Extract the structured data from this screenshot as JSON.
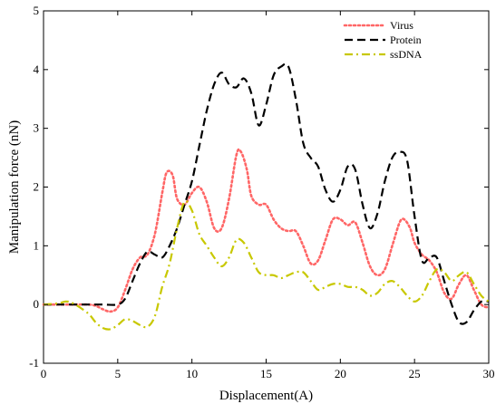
{
  "chart_data": {
    "type": "line",
    "title": "",
    "xlabel": "Displacement(A)",
    "ylabel": "Manipulation force (nN)",
    "xlim": [
      0,
      30
    ],
    "ylim": [
      -1,
      5
    ],
    "xticks": [
      0,
      5,
      10,
      15,
      20,
      25,
      30
    ],
    "yticks": [
      -1,
      0,
      1,
      2,
      3,
      4,
      5
    ],
    "grid": false,
    "legend_position": "top-right",
    "series": [
      {
        "name": "Virus",
        "color": "#ff6666",
        "style": "dotted",
        "x": [
          0,
          1,
          2,
          3,
          3.5,
          4,
          4.5,
          5,
          5.5,
          6,
          6.5,
          7,
          7.5,
          8,
          8.3,
          8.7,
          9,
          9.5,
          10,
          10.5,
          11,
          11.5,
          12,
          12.5,
          13,
          13.3,
          13.7,
          14,
          14.5,
          15,
          15.5,
          16,
          16.5,
          17,
          17.5,
          18,
          18.5,
          19,
          19.5,
          20,
          20.5,
          21,
          21.5,
          22,
          22.5,
          23,
          23.5,
          24,
          24.3,
          24.7,
          25,
          25.5,
          26,
          26.5,
          27,
          27.5,
          28,
          28.5,
          29,
          29.5,
          30
        ],
        "y": [
          0,
          0,
          0,
          0,
          -0.02,
          -0.08,
          -0.12,
          -0.05,
          0.25,
          0.6,
          0.8,
          0.85,
          1.2,
          1.9,
          2.25,
          2.2,
          1.8,
          1.7,
          1.9,
          2.0,
          1.75,
          1.3,
          1.3,
          1.8,
          2.55,
          2.6,
          2.3,
          1.85,
          1.7,
          1.7,
          1.45,
          1.3,
          1.25,
          1.25,
          1.0,
          0.7,
          0.75,
          1.1,
          1.45,
          1.45,
          1.35,
          1.4,
          1.05,
          0.65,
          0.5,
          0.6,
          1.0,
          1.4,
          1.45,
          1.3,
          1.05,
          0.85,
          0.75,
          0.55,
          0.2,
          0.1,
          0.35,
          0.5,
          0.25,
          0.0,
          -0.05
        ]
      },
      {
        "name": "Protein",
        "color": "#000000",
        "style": "dashed",
        "x": [
          0,
          1,
          2,
          3,
          4,
          5,
          5.5,
          6,
          6.5,
          7,
          7.5,
          8,
          8.5,
          9,
          9.5,
          10,
          10.5,
          11,
          11.5,
          12,
          12.5,
          13,
          13.5,
          14,
          14.5,
          15,
          15.5,
          16,
          16.5,
          17,
          17.5,
          18,
          18.5,
          19,
          19.5,
          20,
          20.5,
          21,
          21.5,
          22,
          22.5,
          23,
          23.5,
          24,
          24.5,
          25,
          25.5,
          26,
          26.5,
          27,
          27.5,
          28,
          28.5,
          29,
          29.5,
          30
        ],
        "y": [
          0,
          0,
          0,
          0,
          0,
          0,
          0.1,
          0.4,
          0.7,
          0.9,
          0.85,
          0.8,
          1.0,
          1.3,
          1.7,
          2.1,
          2.7,
          3.3,
          3.75,
          3.95,
          3.75,
          3.7,
          3.85,
          3.6,
          3.05,
          3.4,
          3.9,
          4.05,
          4.05,
          3.5,
          2.75,
          2.5,
          2.35,
          1.95,
          1.75,
          1.95,
          2.35,
          2.3,
          1.7,
          1.3,
          1.55,
          2.1,
          2.5,
          2.6,
          2.45,
          1.5,
          0.75,
          0.8,
          0.8,
          0.4,
          0.0,
          -0.3,
          -0.3,
          -0.1,
          0.05,
          0.05
        ]
      },
      {
        "name": "ssDNA",
        "color": "#c8c800",
        "style": "dashdot",
        "x": [
          0,
          1,
          1.5,
          2,
          3,
          3.5,
          4,
          4.5,
          5,
          5.5,
          6,
          6.5,
          7,
          7.5,
          8,
          8.5,
          9,
          9.5,
          10,
          10.5,
          11,
          11.5,
          12,
          12.5,
          13,
          13.5,
          14,
          14.5,
          15,
          15.5,
          16,
          16.5,
          17,
          17.5,
          18,
          18.5,
          19,
          19.5,
          20,
          20.5,
          21,
          21.5,
          22,
          22.5,
          23,
          23.5,
          24,
          24.5,
          25,
          25.5,
          26,
          26.5,
          27,
          27.5,
          28,
          28.5,
          29,
          29.5,
          30
        ],
        "y": [
          0,
          0.02,
          0.05,
          0.02,
          -0.15,
          -0.3,
          -0.4,
          -0.42,
          -0.35,
          -0.25,
          -0.28,
          -0.35,
          -0.38,
          -0.2,
          0.3,
          0.7,
          1.3,
          1.75,
          1.6,
          1.2,
          1.0,
          0.8,
          0.65,
          0.8,
          1.1,
          1.05,
          0.8,
          0.55,
          0.5,
          0.5,
          0.45,
          0.5,
          0.55,
          0.55,
          0.4,
          0.25,
          0.3,
          0.35,
          0.35,
          0.3,
          0.3,
          0.25,
          0.15,
          0.2,
          0.35,
          0.4,
          0.3,
          0.15,
          0.05,
          0.15,
          0.4,
          0.6,
          0.55,
          0.4,
          0.5,
          0.55,
          0.35,
          0.15,
          0.05
        ]
      }
    ]
  }
}
